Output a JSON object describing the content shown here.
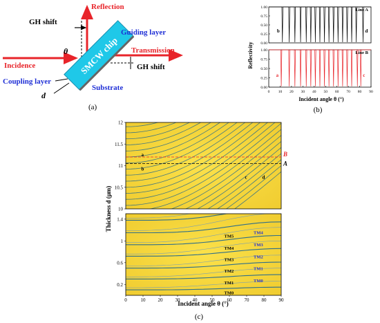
{
  "panel_a": {
    "reflection": "Reflection",
    "gh_shift_top": "GH shift",
    "guiding_layer": "Guiding layer",
    "theta": "θ",
    "incidence": "Incidence",
    "transmission": "Transmission",
    "chip": "SMCW chip",
    "gh_shift_bottom": "GH shift",
    "coupling_layer": "Coupling layer",
    "substrate": "Substrate",
    "d": "d",
    "caption": "(a)"
  },
  "panel_b": {
    "caption": "(b)",
    "xlabel": "Incident angle θ (°)",
    "ylabel": "Reflectivity",
    "xticks": [
      "0",
      "10",
      "20",
      "30",
      "40",
      "50",
      "60",
      "70",
      "80",
      "90"
    ],
    "yticks": [
      "0.00",
      "0.25",
      "0.50",
      "0.75",
      "1.00"
    ],
    "line_a_label": "Line A",
    "line_b_label": "Line B",
    "mark_b": "b",
    "mark_d": "d",
    "mark_a": "a",
    "mark_c": "c"
  },
  "panel_c": {
    "caption": "(c)",
    "xlabel": "Incident angle θ (°)",
    "ylabel": "Thickness d (μm)",
    "xticks": [
      "0",
      "10",
      "20",
      "30",
      "40",
      "50",
      "60",
      "70",
      "80",
      "90"
    ],
    "top_yticks": [
      "10",
      "10.5",
      "11",
      "11.5",
      "12"
    ],
    "bottom_yticks": [
      "0.2",
      "0.6",
      "1",
      "1.4"
    ],
    "line_A": "A",
    "line_B": "B",
    "mark_a": "a",
    "mark_b": "b",
    "mark_c": "c",
    "mark_d": "d",
    "tm_left": [
      "TM0",
      "TM1",
      "TM2",
      "TM3",
      "TM4",
      "TM5"
    ],
    "tm_right": [
      "TM0",
      "TM1",
      "TM2",
      "TM3",
      "TM4"
    ]
  },
  "colors": {
    "red": "#e8242a",
    "blue": "#1f2fd6",
    "cyan": "#1fc8e8",
    "yellow": "#f5d63c",
    "curve": "#2f6f8a"
  },
  "chart_data": [
    {
      "type": "line",
      "title": "",
      "xlabel": "Incident angle θ (°)",
      "ylabel": "Reflectivity",
      "xlim": [
        0,
        90
      ],
      "ylim": [
        0,
        1
      ],
      "series": [
        {
          "name": "Line A",
          "dip_angles": [
            12,
            18,
            23,
            28,
            33,
            37,
            41,
            45,
            49,
            53,
            57,
            61,
            65,
            69,
            73,
            77,
            83
          ]
        },
        {
          "name": "Line B",
          "dip_angles": [
            11,
            18,
            23,
            28,
            33,
            37,
            41,
            45,
            49,
            53,
            57,
            61,
            65,
            69,
            73,
            78,
            81
          ]
        }
      ]
    },
    {
      "type": "heatmap",
      "xlabel": "Incident angle θ (°)",
      "ylabel": "Thickness d (μm)",
      "xlim": [
        0,
        90
      ],
      "ylim_top": [
        10,
        12
      ],
      "ylim_bottom": [
        0,
        1.5
      ],
      "line_A_d": 11.05,
      "line_B_d": 11.2
    }
  ]
}
